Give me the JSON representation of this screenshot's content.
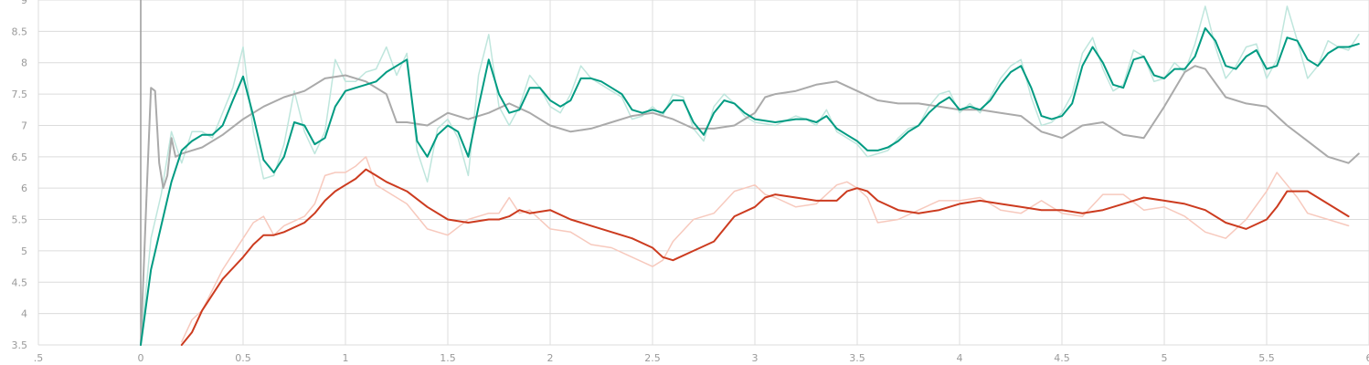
{
  "chart_data": {
    "type": "line",
    "title": "",
    "xlabel": "",
    "ylabel": "",
    "xlim": [
      -0.5,
      6
    ],
    "ylim": [
      3.5,
      9
    ],
    "x_ticks": [
      -0.5,
      0,
      0.5,
      1,
      1.5,
      2,
      2.5,
      3,
      3.5,
      4,
      4.5,
      5,
      5.5,
      6
    ],
    "x_tick_labels": [
      ".5",
      "0",
      "0.5",
      "1",
      "1.5",
      "2",
      "2.5",
      "3",
      "3.5",
      "4",
      "4.5",
      "5",
      "5.5",
      "6"
    ],
    "y_ticks": [
      3.5,
      4,
      4.5,
      5,
      5.5,
      6,
      6.5,
      7,
      7.5,
      8,
      8.5,
      9
    ],
    "y_tick_labels": [
      "3.5",
      "4",
      "4.5",
      "5",
      "5.5",
      "6",
      "6.5",
      "7",
      "7.5",
      "8",
      "8.5",
      "9"
    ],
    "grid": true,
    "zero_line_x": 0,
    "series": [
      {
        "color": "#aaaaaa",
        "raw_color": "#e6e6e6",
        "x": [
          0,
          0.03,
          0.05,
          0.07,
          0.09,
          0.11,
          0.13,
          0.15,
          0.17,
          0.2,
          0.25,
          0.3,
          0.4,
          0.5,
          0.6,
          0.7,
          0.8,
          0.9,
          1.0,
          1.1,
          1.2,
          1.25,
          1.3,
          1.4,
          1.5,
          1.6,
          1.7,
          1.8,
          1.9,
          2.0,
          2.1,
          2.2,
          2.3,
          2.4,
          2.5,
          2.6,
          2.7,
          2.8,
          2.9,
          3.0,
          3.05,
          3.1,
          3.2,
          3.3,
          3.4,
          3.5,
          3.6,
          3.7,
          3.8,
          3.9,
          4.0,
          4.1,
          4.2,
          4.3,
          4.4,
          4.5,
          4.6,
          4.7,
          4.8,
          4.9,
          5.0,
          5.1,
          5.15,
          5.2,
          5.3,
          5.4,
          5.5,
          5.6,
          5.7,
          5.8,
          5.9,
          5.95
        ],
        "values": [
          3.5,
          6.0,
          7.6,
          7.55,
          6.4,
          6.0,
          6.2,
          6.8,
          6.5,
          6.55,
          6.6,
          6.65,
          6.85,
          7.1,
          7.3,
          7.45,
          7.55,
          7.75,
          7.8,
          7.7,
          7.5,
          7.05,
          7.05,
          7.0,
          7.2,
          7.1,
          7.2,
          7.35,
          7.2,
          7.0,
          6.9,
          6.95,
          7.05,
          7.15,
          7.2,
          7.1,
          6.95,
          6.95,
          7.0,
          7.2,
          7.45,
          7.5,
          7.55,
          7.65,
          7.7,
          7.55,
          7.4,
          7.35,
          7.35,
          7.3,
          7.25,
          7.25,
          7.2,
          7.15,
          6.9,
          6.8,
          7.0,
          7.05,
          6.85,
          6.8,
          7.3,
          7.85,
          7.95,
          7.9,
          7.45,
          7.35,
          7.3,
          7.0,
          6.75,
          6.5,
          6.4,
          6.55
        ]
      },
      {
        "color": "#009b82",
        "raw_color": "#bfe6dd",
        "x": [
          0,
          0.05,
          0.1,
          0.15,
          0.2,
          0.25,
          0.3,
          0.35,
          0.4,
          0.45,
          0.5,
          0.55,
          0.6,
          0.65,
          0.7,
          0.75,
          0.8,
          0.85,
          0.9,
          0.95,
          1.0,
          1.05,
          1.1,
          1.15,
          1.2,
          1.25,
          1.3,
          1.35,
          1.4,
          1.45,
          1.5,
          1.55,
          1.6,
          1.65,
          1.7,
          1.75,
          1.8,
          1.85,
          1.9,
          1.95,
          2.0,
          2.05,
          2.1,
          2.15,
          2.2,
          2.25,
          2.3,
          2.35,
          2.4,
          2.45,
          2.5,
          2.55,
          2.6,
          2.65,
          2.7,
          2.75,
          2.8,
          2.85,
          2.9,
          2.95,
          3.0,
          3.1,
          3.2,
          3.25,
          3.3,
          3.35,
          3.4,
          3.45,
          3.5,
          3.55,
          3.6,
          3.65,
          3.7,
          3.75,
          3.8,
          3.85,
          3.9,
          3.95,
          4.0,
          4.05,
          4.1,
          4.15,
          4.2,
          4.25,
          4.3,
          4.35,
          4.4,
          4.45,
          4.5,
          4.55,
          4.6,
          4.65,
          4.7,
          4.75,
          4.8,
          4.85,
          4.9,
          4.95,
          5.0,
          5.05,
          5.1,
          5.15,
          5.2,
          5.25,
          5.3,
          5.35,
          5.4,
          5.45,
          5.5,
          5.55,
          5.6,
          5.65,
          5.7,
          5.75,
          5.8,
          5.85,
          5.9,
          5.95
        ],
        "values": [
          3.45,
          4.7,
          5.4,
          6.1,
          6.6,
          6.75,
          6.85,
          6.85,
          7.0,
          7.4,
          7.78,
          7.15,
          6.45,
          6.25,
          6.5,
          7.05,
          7.0,
          6.7,
          6.8,
          7.3,
          7.55,
          7.6,
          7.65,
          7.7,
          7.85,
          7.95,
          8.05,
          6.75,
          6.5,
          6.85,
          7.0,
          6.9,
          6.5,
          7.3,
          8.05,
          7.5,
          7.2,
          7.25,
          7.6,
          7.6,
          7.4,
          7.3,
          7.4,
          7.75,
          7.75,
          7.7,
          7.6,
          7.5,
          7.25,
          7.2,
          7.25,
          7.2,
          7.4,
          7.4,
          7.05,
          6.85,
          7.2,
          7.4,
          7.35,
          7.2,
          7.1,
          7.05,
          7.1,
          7.1,
          7.05,
          7.15,
          6.95,
          6.85,
          6.75,
          6.6,
          6.6,
          6.65,
          6.75,
          6.9,
          7.0,
          7.2,
          7.35,
          7.45,
          7.25,
          7.3,
          7.25,
          7.4,
          7.65,
          7.85,
          7.95,
          7.6,
          7.15,
          7.1,
          7.15,
          7.35,
          7.95,
          8.25,
          8.0,
          7.65,
          7.6,
          8.05,
          8.1,
          7.8,
          7.75,
          7.9,
          7.9,
          8.1,
          8.55,
          8.35,
          7.95,
          7.9,
          8.1,
          8.2,
          7.9,
          7.95,
          8.4,
          8.35,
          8.05,
          7.95,
          8.15,
          8.25,
          8.25,
          8.3
        ],
        "raw_values": [
          3.5,
          5.2,
          5.9,
          6.9,
          6.4,
          6.9,
          6.9,
          6.8,
          7.2,
          7.6,
          8.25,
          6.9,
          6.15,
          6.2,
          6.7,
          7.55,
          6.9,
          6.55,
          6.9,
          8.05,
          7.7,
          7.7,
          7.85,
          7.9,
          8.25,
          7.8,
          8.15,
          6.6,
          6.1,
          6.95,
          7.1,
          6.8,
          6.2,
          7.8,
          8.45,
          7.3,
          7.0,
          7.3,
          7.8,
          7.6,
          7.3,
          7.2,
          7.5,
          7.95,
          7.75,
          7.65,
          7.55,
          7.45,
          7.1,
          7.15,
          7.3,
          7.15,
          7.5,
          7.45,
          6.95,
          6.75,
          7.3,
          7.5,
          7.35,
          7.15,
          7.05,
          7.0,
          7.15,
          7.1,
          7.0,
          7.25,
          6.9,
          6.8,
          6.7,
          6.5,
          6.55,
          6.6,
          6.8,
          6.95,
          7.0,
          7.3,
          7.5,
          7.55,
          7.2,
          7.35,
          7.2,
          7.45,
          7.75,
          7.95,
          8.05,
          7.45,
          7.0,
          7.05,
          7.2,
          7.5,
          8.15,
          8.4,
          7.9,
          7.55,
          7.65,
          8.2,
          8.1,
          7.7,
          7.75,
          8.0,
          7.85,
          8.3,
          8.9,
          8.25,
          7.75,
          7.95,
          8.25,
          8.3,
          7.75,
          8.05,
          8.9,
          8.35,
          7.75,
          7.95,
          8.35,
          8.25,
          8.2,
          8.45
        ]
      },
      {
        "color": "#cc3b1f",
        "raw_color": "#f7c9bd",
        "x": [
          0.2,
          0.25,
          0.3,
          0.4,
          0.5,
          0.55,
          0.6,
          0.65,
          0.7,
          0.8,
          0.85,
          0.9,
          0.95,
          1.0,
          1.05,
          1.1,
          1.15,
          1.2,
          1.3,
          1.4,
          1.5,
          1.6,
          1.7,
          1.75,
          1.8,
          1.85,
          1.9,
          2.0,
          2.1,
          2.2,
          2.3,
          2.4,
          2.5,
          2.55,
          2.6,
          2.7,
          2.8,
          2.9,
          3.0,
          3.05,
          3.1,
          3.2,
          3.3,
          3.4,
          3.45,
          3.5,
          3.55,
          3.6,
          3.7,
          3.8,
          3.9,
          4.0,
          4.1,
          4.2,
          4.3,
          4.4,
          4.5,
          4.6,
          4.7,
          4.8,
          4.9,
          5.0,
          5.1,
          5.2,
          5.3,
          5.4,
          5.5,
          5.55,
          5.6,
          5.65,
          5.7,
          5.8,
          5.9
        ],
        "values": [
          3.5,
          3.7,
          4.05,
          4.55,
          4.9,
          5.1,
          5.25,
          5.25,
          5.3,
          5.45,
          5.6,
          5.8,
          5.95,
          6.05,
          6.15,
          6.3,
          6.2,
          6.1,
          5.95,
          5.7,
          5.5,
          5.45,
          5.5,
          5.5,
          5.55,
          5.65,
          5.6,
          5.65,
          5.5,
          5.4,
          5.3,
          5.2,
          5.05,
          4.9,
          4.85,
          5.0,
          5.15,
          5.55,
          5.7,
          5.85,
          5.9,
          5.85,
          5.8,
          5.8,
          5.95,
          6.0,
          5.95,
          5.8,
          5.65,
          5.6,
          5.65,
          5.75,
          5.8,
          5.75,
          5.7,
          5.65,
          5.65,
          5.6,
          5.65,
          5.75,
          5.85,
          5.8,
          5.75,
          5.65,
          5.45,
          5.35,
          5.5,
          5.7,
          5.95,
          5.95,
          5.95,
          5.75,
          5.55
        ],
        "raw_values": [
          3.55,
          3.9,
          4.05,
          4.7,
          5.2,
          5.45,
          5.55,
          5.25,
          5.4,
          5.55,
          5.75,
          6.2,
          6.25,
          6.25,
          6.35,
          6.5,
          6.05,
          5.95,
          5.75,
          5.35,
          5.25,
          5.5,
          5.6,
          5.6,
          5.85,
          5.6,
          5.65,
          5.35,
          5.3,
          5.1,
          5.05,
          4.9,
          4.75,
          4.85,
          5.15,
          5.5,
          5.6,
          5.95,
          6.05,
          5.9,
          5.85,
          5.7,
          5.75,
          6.05,
          6.1,
          6.0,
          5.85,
          5.45,
          5.5,
          5.65,
          5.8,
          5.8,
          5.85,
          5.65,
          5.6,
          5.8,
          5.6,
          5.55,
          5.9,
          5.9,
          5.65,
          5.7,
          5.55,
          5.3,
          5.2,
          5.5,
          5.95,
          6.25,
          6.05,
          5.85,
          5.6,
          5.5,
          5.4
        ]
      }
    ]
  }
}
